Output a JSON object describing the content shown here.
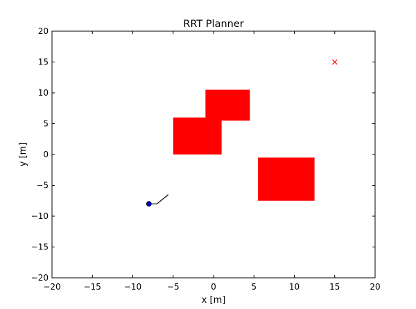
{
  "chart_data": {
    "type": "scatter",
    "title": "RRT Planner",
    "xlabel": "x [m]",
    "ylabel": "y [m]",
    "xlim": [
      -20,
      20
    ],
    "ylim": [
      -20,
      20
    ],
    "xticks": [
      -20,
      -15,
      -10,
      -5,
      0,
      5,
      10,
      15,
      20
    ],
    "yticks": [
      -20,
      -15,
      -10,
      -5,
      0,
      5,
      10,
      15,
      20
    ],
    "xtick_labels": [
      "−20",
      "−15",
      "−10",
      "−5",
      "0",
      "5",
      "10",
      "15",
      "20"
    ],
    "ytick_labels": [
      "−20",
      "−15",
      "−10",
      "−5",
      "0",
      "5",
      "10",
      "15",
      "20"
    ],
    "grid": false,
    "obstacles": [
      {
        "x_min": -5,
        "x_max": 1,
        "y_min": 0,
        "y_max": 6
      },
      {
        "x_min": -1,
        "x_max": 4.5,
        "y_min": 5.5,
        "y_max": 10.5
      },
      {
        "x_min": 5.5,
        "x_max": 12.5,
        "y_min": -7.5,
        "y_max": -0.5
      }
    ],
    "obstacle_color": "#ff0000",
    "start": {
      "x": -8,
      "y": -8
    },
    "start_color": "#0000cc",
    "goal": {
      "x": 15,
      "y": 15
    },
    "goal_color": "#ff0000",
    "path": [
      [
        -8,
        -8
      ],
      [
        -7,
        -8
      ],
      [
        -5.6,
        -6.5
      ]
    ],
    "path_color": "#000000"
  }
}
